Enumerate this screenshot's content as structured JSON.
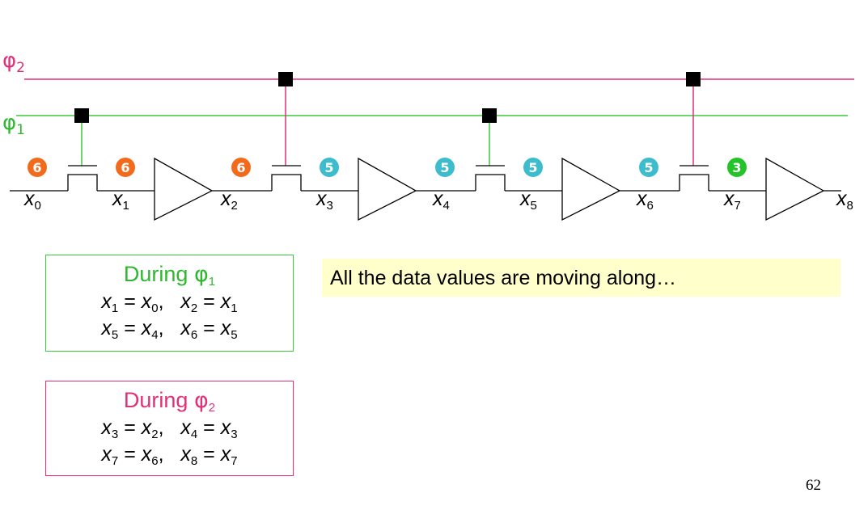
{
  "clocks": {
    "phi2": {
      "label": "φ",
      "sub": "2",
      "color": "#e0307a"
    },
    "phi1": {
      "label": "φ",
      "sub": "1",
      "color": "#2fb82f"
    }
  },
  "nodes": [
    {
      "name": "x",
      "sub": "0"
    },
    {
      "name": "x",
      "sub": "1"
    },
    {
      "name": "x",
      "sub": "2"
    },
    {
      "name": "x",
      "sub": "3"
    },
    {
      "name": "x",
      "sub": "4"
    },
    {
      "name": "x",
      "sub": "5"
    },
    {
      "name": "x",
      "sub": "6"
    },
    {
      "name": "x",
      "sub": "7"
    },
    {
      "name": "x",
      "sub": "8"
    }
  ],
  "badges": [
    {
      "value": "6",
      "color": "#f26b1d"
    },
    {
      "value": "6",
      "color": "#f26b1d"
    },
    {
      "value": "6",
      "color": "#f26b1d"
    },
    {
      "value": "5",
      "color": "#3cbccc"
    },
    {
      "value": "5",
      "color": "#3cbccc"
    },
    {
      "value": "5",
      "color": "#3cbccc"
    },
    {
      "value": "5",
      "color": "#3cbccc"
    },
    {
      "value": "3",
      "color": "#22c42a"
    }
  ],
  "box_phi1": {
    "title_prefix": "During ",
    "title_phi": "φ",
    "title_sub": "1",
    "eq1": {
      "a": "x",
      "as": "1",
      "b": "x",
      "bs": "0",
      "c": "x",
      "cs": "2",
      "d": "x",
      "ds": "1"
    },
    "eq2": {
      "a": "x",
      "as": "5",
      "b": "x",
      "bs": "4",
      "c": "x",
      "cs": "6",
      "d": "x",
      "ds": "5"
    }
  },
  "box_phi2": {
    "title_prefix": "During ",
    "title_phi": "φ",
    "title_sub": "2",
    "eq1": {
      "a": "x",
      "as": "3",
      "b": "x",
      "bs": "2",
      "c": "x",
      "cs": "4",
      "d": "x",
      "ds": "3"
    },
    "eq2": {
      "a": "x",
      "as": "7",
      "b": "x",
      "bs": "6",
      "c": "x",
      "cs": "8",
      "d": "x",
      "ds": "7"
    }
  },
  "note": "All the data values are moving along…",
  "page_number": "62"
}
